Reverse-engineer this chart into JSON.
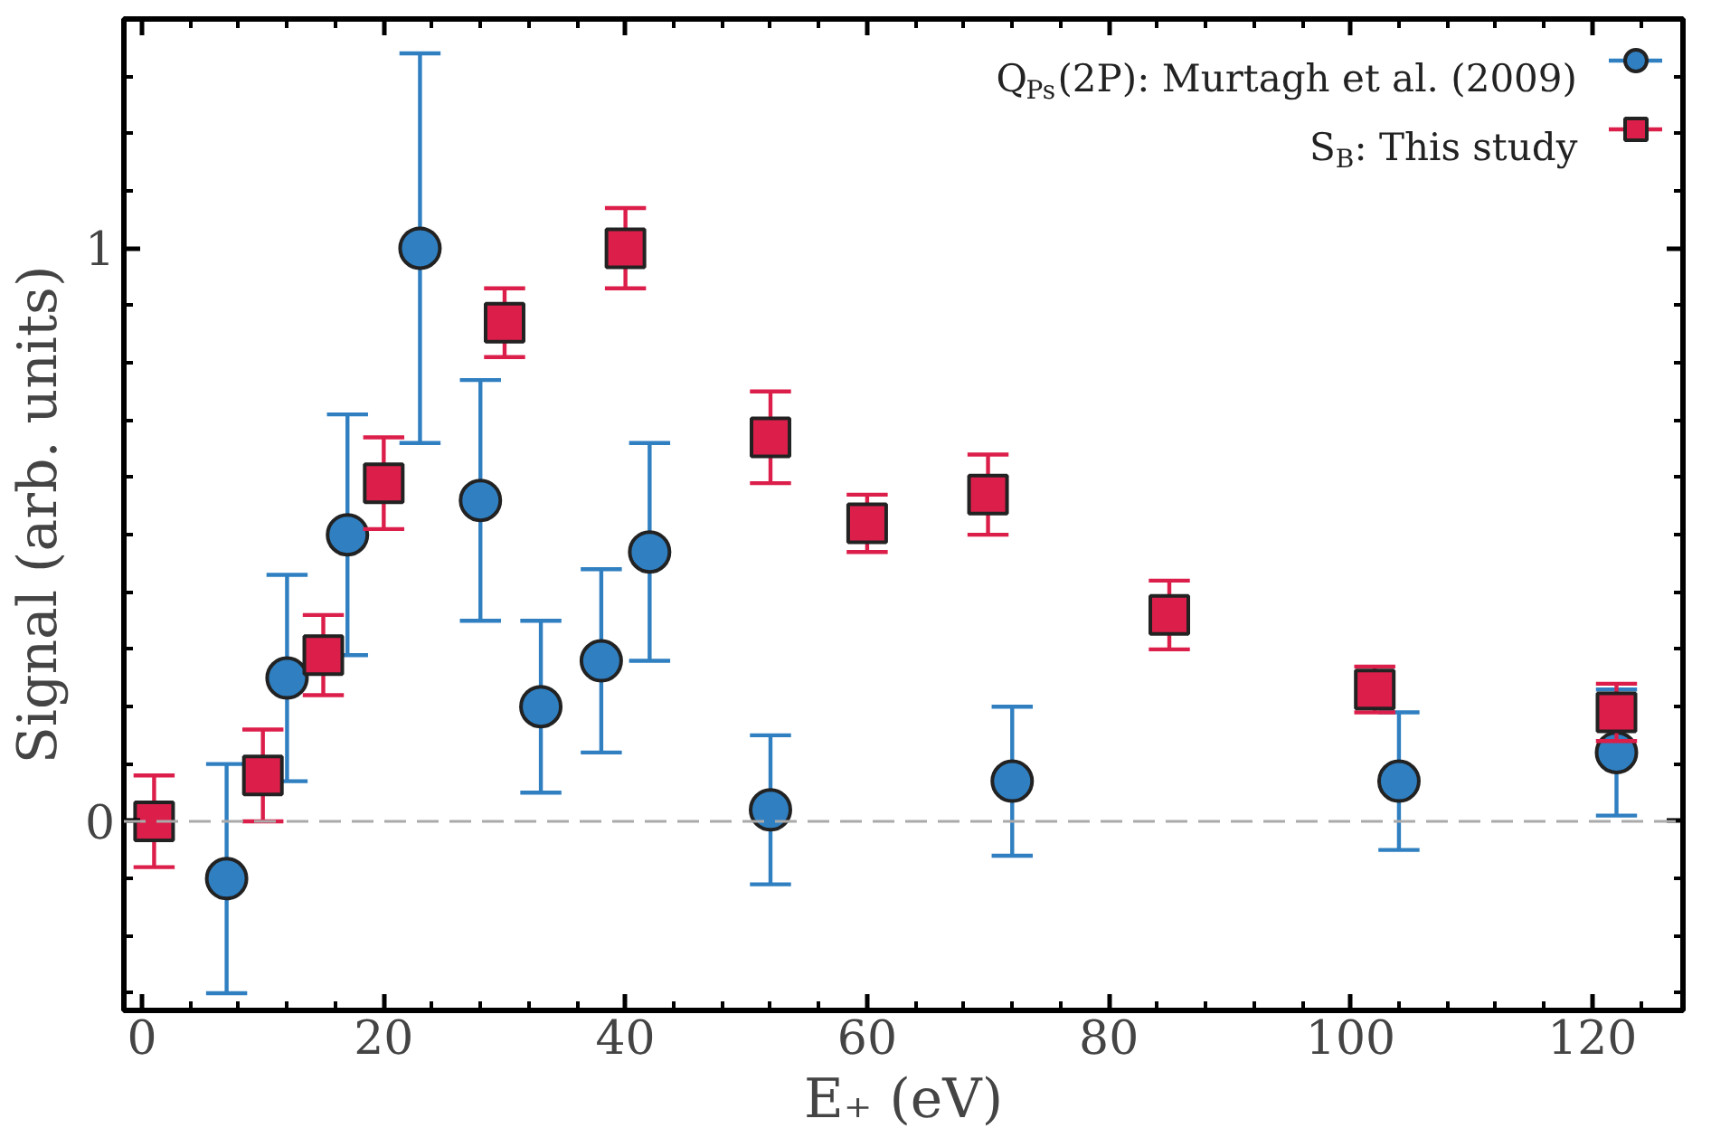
{
  "chart_data": {
    "type": "scatter",
    "xlabel": "E₊ (eV)",
    "ylabel": "Signal (arb. units)",
    "xlim": [
      -1.5,
      127.5
    ],
    "ylim": [
      -0.33,
      1.4
    ],
    "xticks": [
      0,
      20,
      40,
      60,
      80,
      100,
      120
    ],
    "yticks": [
      0,
      1
    ],
    "series": [
      {
        "name": "Q$_{Ps}$(2P): Murtagh et al. (2009)",
        "color": "#2f7fc1",
        "marker": "circle",
        "x": [
          7,
          12,
          17,
          23,
          28,
          33,
          38,
          42,
          52,
          72,
          104,
          122
        ],
        "values": [
          -0.1,
          0.25,
          0.5,
          1.0,
          0.56,
          0.2,
          0.28,
          0.47,
          0.02,
          0.07,
          0.07,
          0.12
        ],
        "errors": [
          0.2,
          0.18,
          0.21,
          0.34,
          0.21,
          0.15,
          0.16,
          0.19,
          0.13,
          0.13,
          0.12,
          0.11
        ]
      },
      {
        "name": "S$_{B}$: This study",
        "color": "#dc1f4a",
        "marker": "square",
        "x": [
          1,
          10,
          15,
          20,
          30,
          40,
          52,
          60,
          70,
          85,
          102,
          122
        ],
        "values": [
          0.0,
          0.08,
          0.29,
          0.59,
          0.87,
          1.0,
          0.67,
          0.52,
          0.57,
          0.36,
          0.23,
          0.19
        ],
        "errors": [
          0.08,
          0.08,
          0.07,
          0.08,
          0.06,
          0.07,
          0.08,
          0.05,
          0.07,
          0.06,
          0.04,
          0.05
        ]
      }
    ],
    "ref_lines": [
      {
        "axis": "y",
        "value": 0,
        "color": "#aaaaaa",
        "line_style": "dashed"
      }
    ],
    "grid": false,
    "legend": "top right"
  }
}
